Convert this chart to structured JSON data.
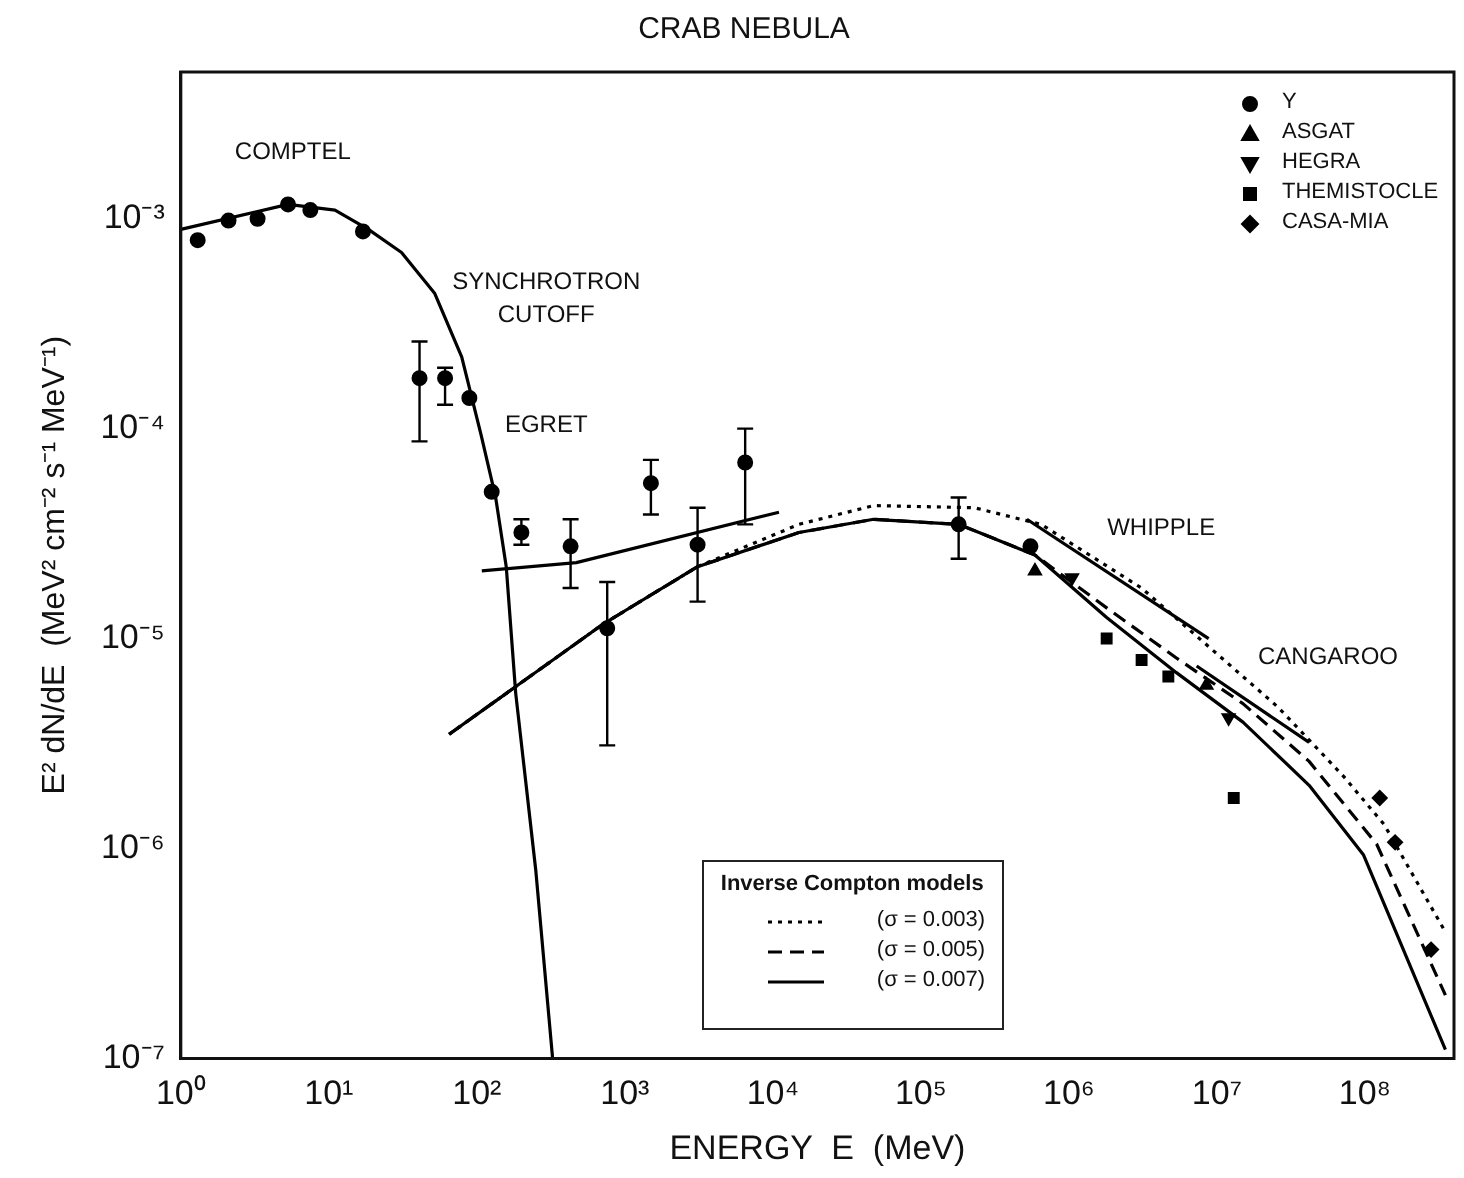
{
  "chart_data": {
    "type": "scatter",
    "title": "CRAB NEBULA",
    "xlabel": "ENERGY  E  (MeV)",
    "ylabel": "E² dN/dE  (MeV² cm⁻² s⁻¹ MeV⁻¹)",
    "legend_title": "Inverse Compton models",
    "log": "xy",
    "grid": false,
    "legend": "top right",
    "xlim": [
      1,
      400000000
    ],
    "ylim": [
      1e-07,
      0.005
    ],
    "xticks": [
      {
        "value": 1,
        "label": "10⁰"
      },
      {
        "value": 10,
        "label": "10¹"
      },
      {
        "value": 100,
        "label": "10²"
      },
      {
        "value": 1000,
        "label": "10³"
      },
      {
        "value": 10000,
        "label": "10⁴"
      },
      {
        "value": 100000,
        "label": "10⁵"
      },
      {
        "value": 1000000,
        "label": "10⁶"
      },
      {
        "value": 10000000,
        "label": "10⁷"
      },
      {
        "value": 100000000,
        "label": "10⁸"
      }
    ],
    "yticks": [
      {
        "value": 1e-07,
        "label": "10⁻⁷"
      },
      {
        "value": 1e-06,
        "label": "10⁻⁶"
      },
      {
        "value": 1e-05,
        "label": "10⁻⁵"
      },
      {
        "value": 0.0001,
        "label": "10⁻⁴"
      },
      {
        "value": 0.001,
        "label": "10⁻³"
      }
    ],
    "annotations": [
      "COMPTEL",
      "SYNCHROTRON",
      "CUTOFF",
      "EGRET",
      "WHIPPLE",
      "CANGAROO"
    ],
    "series": [
      {
        "type": "line",
        "color": "#000000",
        "line_style": "solid",
        "marker": "none",
        "x": [
          1,
          5.3,
          11,
          18.5,
          31,
          52,
          79,
          107,
          134,
          158,
          183,
          250,
          325
        ],
        "values": [
          0.00089,
          0.00117,
          0.0011,
          0.00089,
          0.00069,
          0.00044,
          0.00022,
          9.3e-05,
          4.7e-05,
          2.2e-05,
          5.5e-06,
          7.9e-07,
          1e-07
        ]
      },
      {
        "type": "line",
        "color": "#000000",
        "line_style": "solid",
        "marker": "none",
        "x": [
          108,
          470,
          11000
        ],
        "values": [
          2.1e-05,
          2.3e-05,
          4e-05
        ]
      },
      {
        "type": "line",
        "color": "#000000",
        "line_style": "solid",
        "marker": "none",
        "x": [
          520000,
          8800000
        ],
        "values": [
          3.7e-05,
          1e-05
        ]
      },
      {
        "type": "line",
        "color": "#000000",
        "line_style": "solid",
        "marker": "none",
        "x": [
          7300000,
          42000000
        ],
        "values": [
          7.4e-06,
          3.2e-06
        ]
      },
      {
        "type": "line",
        "name": "(σ = 0.003)",
        "color": "#000000",
        "line_style": "dotted",
        "marker": "none",
        "x": [
          65,
          710,
          3100,
          15000,
          48000,
          230000,
          650000,
          3100000,
          26000000,
          72000000,
          135000000,
          350000000
        ],
        "values": [
          3.5e-06,
          1.17e-05,
          2.2e-05,
          3.5e-05,
          4.3e-05,
          4.2e-05,
          3.5e-05,
          1.74e-05,
          4.7e-06,
          2.2e-06,
          1.3e-06,
          4e-07
        ]
      },
      {
        "type": "line",
        "name": "(σ = 0.005)",
        "color": "#000000",
        "line_style": "dashed",
        "marker": "none",
        "x": [
          65,
          710,
          3100,
          15000,
          48000,
          180000,
          590000,
          1800000,
          5300000,
          15000000,
          42000000,
          120000000,
          350000000
        ],
        "values": [
          3.5e-06,
          1.17e-05,
          2.2e-05,
          3.2e-05,
          3.7e-05,
          3.5e-05,
          2.5e-05,
          1.4e-05,
          8.1e-06,
          4.9e-06,
          2.6e-06,
          1.05e-06,
          2e-07
        ]
      },
      {
        "type": "line",
        "name": "(σ = 0.007)",
        "color": "#000000",
        "line_style": "solid",
        "marker": "none",
        "x": [
          65,
          710,
          3100,
          15000,
          48000,
          180000,
          590000,
          1800000,
          5300000,
          15000000,
          42000000,
          98000000,
          350000000
        ],
        "values": [
          3.5e-06,
          1.17e-05,
          2.2e-05,
          3.2e-05,
          3.7e-05,
          3.5e-05,
          2.5e-05,
          1.26e-05,
          6.9e-06,
          4e-06,
          2e-06,
          9.3e-07,
          1.1e-07
        ]
      },
      {
        "color": "#000000",
        "marker": "circle",
        "x": [
          1.3,
          2.1,
          3.3,
          5.3,
          7.5,
          17
        ],
        "values": [
          0.00079,
          0.00098,
          0.001,
          0.00117,
          0.0011,
          0.00087
        ]
      },
      {
        "color": "#000000",
        "marker": "circle",
        "x": [
          41,
          61,
          89,
          126,
          200,
          430,
          760,
          1500,
          3100,
          6500
        ],
        "values": [
          0.000174,
          0.000174,
          0.00014,
          5e-05,
          3.2e-05,
          2.75e-05,
          1.12e-05,
          5.5e-05,
          2.8e-05,
          6.9e-05
        ],
        "errors": [
          [
            8.7e-05,
            0.00026
          ],
          [
            0.00013,
            0.000195
          ],
          null,
          null,
          [
            2.8e-05,
            3.7e-05
          ],
          [
            1.74e-05,
            3.7e-05
          ],
          [
            3.1e-06,
            1.86e-05
          ],
          [
            3.9e-05,
            7.1e-05
          ],
          [
            1.5e-05,
            4.2e-05
          ],
          [
            3.5e-05,
            0.0001
          ]
        ]
      },
      {
        "name": "Y",
        "color": "#000000",
        "marker": "circle",
        "x": [
          180000,
          550000
        ],
        "values": [
          3.5e-05,
          2.75e-05
        ],
        "errors": [
          [
            2.4e-05,
            4.7e-05
          ],
          null
        ]
      },
      {
        "name": "ASGAT",
        "color": "#000000",
        "marker": "triangle",
        "x": [
          590000,
          8500000
        ],
        "values": [
          2.1e-05,
          6e-06
        ]
      },
      {
        "name": "HEGRA",
        "color": "#000000",
        "marker": "triangle_down",
        "x": [
          1050000,
          12000000
        ],
        "values": [
          1.95e-05,
          4.2e-06
        ]
      },
      {
        "name": "THEMISTOCLE",
        "color": "#000000",
        "marker": "square",
        "x": [
          1800000,
          3100000,
          4700000,
          13000000
        ],
        "values": [
          1e-05,
          7.9e-06,
          6.6e-06,
          1.74e-06
        ]
      },
      {
        "name": "CASA-MIA",
        "color": "#000000",
        "marker": "diamond",
        "x": [
          126000000,
          160000000,
          280000000
        ],
        "values": [
          1.74e-06,
          1.07e-06,
          3.3e-07
        ]
      }
    ]
  }
}
